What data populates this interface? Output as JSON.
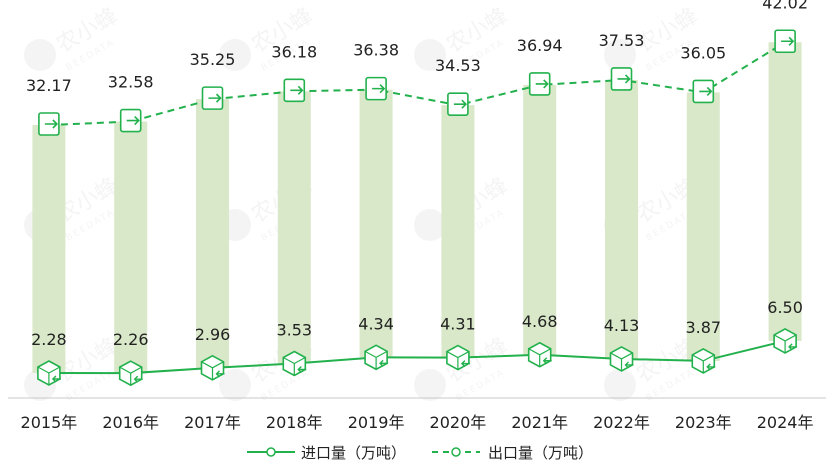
{
  "chart_data": {
    "type": "bar",
    "categories": [
      "2015年",
      "2016年",
      "2017年",
      "2018年",
      "2019年",
      "2020年",
      "2021年",
      "2022年",
      "2023年",
      "2024年"
    ],
    "series": [
      {
        "name": "进口量（万吨）",
        "type": "line",
        "style": "solid",
        "values": [
          2.28,
          2.26,
          2.96,
          3.53,
          4.34,
          4.31,
          4.68,
          4.13,
          3.87,
          6.5
        ]
      },
      {
        "name": "出口量（万吨）",
        "type": "line",
        "style": "dashed",
        "values": [
          32.17,
          32.58,
          35.25,
          36.18,
          36.38,
          34.53,
          36.94,
          37.53,
          36.05,
          42.02
        ]
      }
    ],
    "data_labels": {
      "import": [
        "2.28",
        "2.26",
        "2.96",
        "3.53",
        "4.34",
        "4.31",
        "4.68",
        "4.13",
        "3.87",
        "6.50"
      ],
      "export": [
        "32.17",
        "32.58",
        "35.25",
        "36.18",
        "36.38",
        "34.53",
        "36.94",
        "37.53",
        "36.05",
        "42.02"
      ]
    },
    "legend_position": "bottom",
    "grid": false,
    "colors": {
      "line": "#22b14c",
      "bar": "#d8e8c8",
      "axis": "#c8c8c8",
      "text": "#222222"
    },
    "watermark": {
      "text": "农小蜂",
      "subtext": "BEEDATA"
    }
  }
}
